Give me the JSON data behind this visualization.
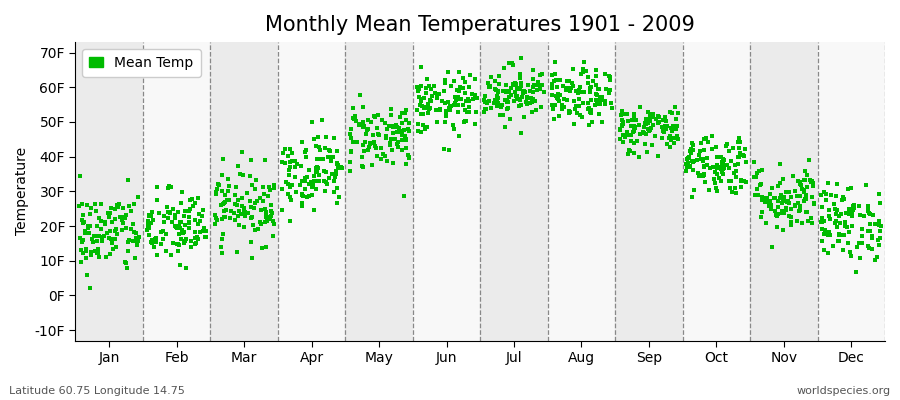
{
  "title": "Monthly Mean Temperatures 1901 - 2009",
  "ylabel": "Temperature",
  "xlabel_labels": [
    "Jan",
    "Feb",
    "Mar",
    "Apr",
    "May",
    "Jun",
    "Jul",
    "Aug",
    "Sep",
    "Oct",
    "Nov",
    "Dec"
  ],
  "ytick_labels": [
    "-10F",
    "0F",
    "10F",
    "20F",
    "30F",
    "40F",
    "50F",
    "60F",
    "70F"
  ],
  "ytick_values": [
    -10,
    0,
    10,
    20,
    30,
    40,
    50,
    60,
    70
  ],
  "ylim": [
    -13,
    73
  ],
  "marker_color": "#00BB00",
  "background_color": "#ffffff",
  "band_color_odd": "#ebebeb",
  "band_color_even": "#f8f8f8",
  "legend_label": "Mean Temp",
  "bottom_left": "Latitude 60.75 Longitude 14.75",
  "bottom_right": "worldspecies.org",
  "title_fontsize": 15,
  "axis_fontsize": 10,
  "tick_fontsize": 10,
  "n_years": 109,
  "monthly_mean_temps_f": [
    18.0,
    19.5,
    26.0,
    36.0,
    46.0,
    55.0,
    58.5,
    57.0,
    48.0,
    38.0,
    28.0,
    21.0
  ],
  "monthly_std_f": [
    6.0,
    5.5,
    5.5,
    5.5,
    5.0,
    4.5,
    4.0,
    4.0,
    3.5,
    4.5,
    5.0,
    5.5
  ]
}
